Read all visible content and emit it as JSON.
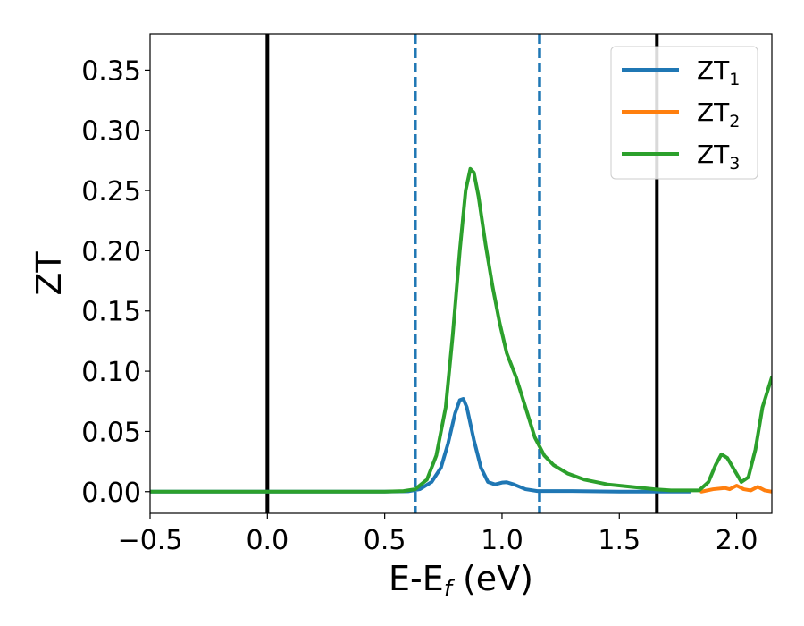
{
  "chart_data": {
    "type": "line",
    "xlabel": "E-E",
    "xlabel_sub": "f",
    "xlabel_unit": " (eV)",
    "ylabel": "ZT",
    "xlim": [
      -0.5,
      2.15
    ],
    "ylim": [
      -0.018,
      0.38
    ],
    "xticks": [
      -0.5,
      0.0,
      0.5,
      1.0,
      1.5,
      2.0
    ],
    "xtick_labels": [
      "−0.5",
      "0.0",
      "0.5",
      "1.0",
      "1.5",
      "2.0"
    ],
    "yticks": [
      0.0,
      0.05,
      0.1,
      0.15,
      0.2,
      0.25,
      0.3,
      0.35
    ],
    "ytick_labels": [
      "0.00",
      "0.05",
      "0.10",
      "0.15",
      "0.20",
      "0.25",
      "0.30",
      "0.35"
    ],
    "grid": false,
    "legend_position": "top-right",
    "vlines": [
      {
        "x": 0.0,
        "style": "solid",
        "color": "#000000"
      },
      {
        "x": 1.66,
        "style": "solid",
        "color": "#000000"
      },
      {
        "x": 0.63,
        "style": "dashed",
        "color": "#1f77b4"
      },
      {
        "x": 1.16,
        "style": "dashed",
        "color": "#1f77b4"
      }
    ],
    "series": [
      {
        "name": "ZT",
        "sub": "1",
        "color": "#1f77b4",
        "points": [
          [
            -0.5,
            0
          ],
          [
            0.5,
            0
          ],
          [
            0.6,
            0.0003
          ],
          [
            0.65,
            0.002
          ],
          [
            0.7,
            0.008
          ],
          [
            0.74,
            0.02
          ],
          [
            0.77,
            0.04
          ],
          [
            0.8,
            0.065
          ],
          [
            0.82,
            0.076
          ],
          [
            0.835,
            0.077
          ],
          [
            0.85,
            0.07
          ],
          [
            0.88,
            0.043
          ],
          [
            0.91,
            0.02
          ],
          [
            0.94,
            0.008
          ],
          [
            0.97,
            0.006
          ],
          [
            1.0,
            0.0075
          ],
          [
            1.02,
            0.0078
          ],
          [
            1.05,
            0.006
          ],
          [
            1.1,
            0.002
          ],
          [
            1.15,
            0.0005
          ],
          [
            1.3,
            0.0005
          ],
          [
            1.5,
            0
          ],
          [
            1.7,
            0
          ],
          [
            1.8,
            0
          ]
        ]
      },
      {
        "name": "ZT",
        "sub": "2",
        "color": "#ff7f0e",
        "points": [
          [
            1.85,
            0
          ],
          [
            1.9,
            0.002
          ],
          [
            1.95,
            0.003
          ],
          [
            1.97,
            0.002
          ],
          [
            2.0,
            0.005
          ],
          [
            2.03,
            0.002
          ],
          [
            2.06,
            0.001
          ],
          [
            2.09,
            0.004
          ],
          [
            2.12,
            0.001
          ],
          [
            2.15,
            0
          ]
        ]
      },
      {
        "name": "ZT",
        "sub": "3",
        "color": "#2ca02c",
        "points": [
          [
            -0.5,
            0
          ],
          [
            0.5,
            0
          ],
          [
            0.58,
            0.0005
          ],
          [
            0.63,
            0.002
          ],
          [
            0.68,
            0.01
          ],
          [
            0.72,
            0.03
          ],
          [
            0.76,
            0.07
          ],
          [
            0.79,
            0.13
          ],
          [
            0.82,
            0.2
          ],
          [
            0.845,
            0.25
          ],
          [
            0.865,
            0.268
          ],
          [
            0.88,
            0.265
          ],
          [
            0.9,
            0.245
          ],
          [
            0.93,
            0.205
          ],
          [
            0.96,
            0.17
          ],
          [
            0.99,
            0.14
          ],
          [
            1.02,
            0.115
          ],
          [
            1.06,
            0.095
          ],
          [
            1.1,
            0.07
          ],
          [
            1.14,
            0.045
          ],
          [
            1.18,
            0.03
          ],
          [
            1.22,
            0.022
          ],
          [
            1.28,
            0.015
          ],
          [
            1.35,
            0.01
          ],
          [
            1.45,
            0.006
          ],
          [
            1.55,
            0.004
          ],
          [
            1.65,
            0.002
          ],
          [
            1.72,
            0.001
          ],
          [
            1.8,
            0.001
          ],
          [
            1.84,
            0.001
          ],
          [
            1.88,
            0.008
          ],
          [
            1.91,
            0.022
          ],
          [
            1.935,
            0.031
          ],
          [
            1.96,
            0.028
          ],
          [
            1.99,
            0.018
          ],
          [
            2.02,
            0.008
          ],
          [
            2.05,
            0.012
          ],
          [
            2.08,
            0.035
          ],
          [
            2.11,
            0.07
          ],
          [
            2.15,
            0.095
          ]
        ]
      }
    ]
  }
}
